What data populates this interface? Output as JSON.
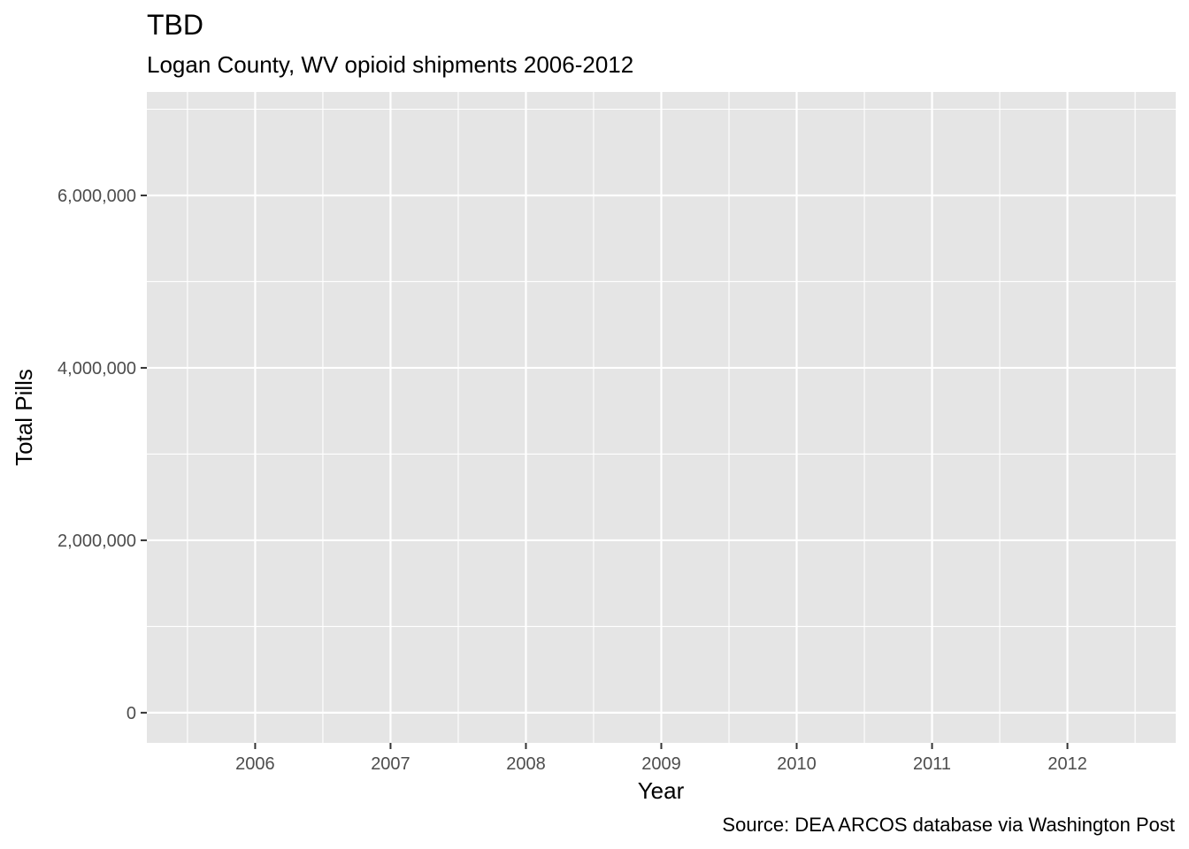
{
  "chart_data": {
    "type": "line",
    "title": "TBD",
    "subtitle": "Logan County, WV opioid shipments 2006-2012",
    "caption": "Source: DEA ARCOS database via Washington Post",
    "xlabel": "Year",
    "ylabel": "Total Pills",
    "x_ticks": [
      2006,
      2007,
      2008,
      2009,
      2010,
      2011,
      2012
    ],
    "x_tick_labels": [
      "2006",
      "2007",
      "2008",
      "2009",
      "2010",
      "2011",
      "2012"
    ],
    "xlim": [
      2005.2,
      2012.8
    ],
    "y_ticks": [
      0,
      2000000,
      4000000,
      6000000
    ],
    "y_tick_labels": [
      "0",
      "2,000,000",
      "4,000,000",
      "6,000,000"
    ],
    "ylim": [
      -350000,
      7200000
    ],
    "grid": true,
    "series": [],
    "colors": {
      "panel": "#e5e5e5",
      "grid": "#ffffff",
      "tick_text": "#4d4d4d",
      "tick_mark": "#333333"
    }
  }
}
